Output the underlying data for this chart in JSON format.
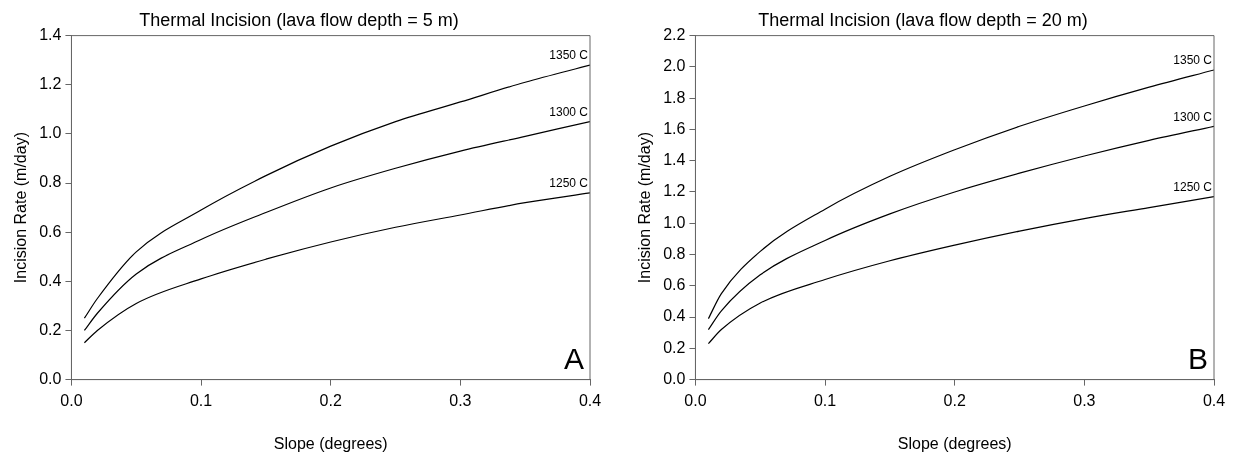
{
  "chart_data": [
    {
      "type": "line",
      "title": "Thermal Incision (lava flow depth = 5 m)",
      "xlabel": "Slope (degrees)",
      "ylabel": "Incision Rate (m/day)",
      "x": [
        0.01,
        0.02,
        0.05,
        0.1,
        0.15,
        0.2,
        0.25,
        0.3,
        0.35,
        0.4
      ],
      "series": [
        {
          "name": "1350 C",
          "color": "#000000",
          "values": [
            0.25,
            0.33,
            0.52,
            0.69,
            0.83,
            0.95,
            1.05,
            1.13,
            1.21,
            1.28
          ]
        },
        {
          "name": "1300 C",
          "color": "#000000",
          "values": [
            0.2,
            0.27,
            0.43,
            0.57,
            0.68,
            0.78,
            0.86,
            0.93,
            0.99,
            1.05
          ]
        },
        {
          "name": "1250 C",
          "color": "#000000",
          "values": [
            0.15,
            0.2,
            0.31,
            0.41,
            0.49,
            0.56,
            0.62,
            0.67,
            0.72,
            0.76
          ]
        }
      ],
      "xlim": [
        0,
        0.4
      ],
      "xticks": [
        {
          "value": 0,
          "label": "0.0"
        },
        0.1,
        0.2,
        0.3,
        0.4
      ],
      "ylim": [
        0,
        1.4
      ],
      "yticks": [
        {
          "value": 0,
          "label": "0.0"
        },
        0.2,
        0.4,
        0.6,
        0.8,
        {
          "value": 1,
          "label": "1.0"
        },
        1.2,
        1.4
      ],
      "annotations": [
        "A"
      ],
      "grid": false,
      "legend": false,
      "marker": "none",
      "line_style": "solid"
    },
    {
      "type": "line",
      "title": "Thermal Incision (lava flow depth = 20 m)",
      "xlabel": "Slope (degrees)",
      "ylabel": "Incision Rate (m/day)",
      "x": [
        0.01,
        0.02,
        0.05,
        0.1,
        0.15,
        0.2,
        0.25,
        0.3,
        0.35,
        0.4
      ],
      "series": [
        {
          "name": "1350 C",
          "color": "#000000",
          "values": [
            0.39,
            0.55,
            0.82,
            1.09,
            1.3,
            1.47,
            1.62,
            1.75,
            1.87,
            1.98
          ]
        },
        {
          "name": "1300 C",
          "color": "#000000",
          "values": [
            0.32,
            0.44,
            0.67,
            0.89,
            1.06,
            1.2,
            1.32,
            1.43,
            1.53,
            1.62
          ]
        },
        {
          "name": "1250 C",
          "color": "#000000",
          "values": [
            0.23,
            0.32,
            0.49,
            0.64,
            0.76,
            0.86,
            0.95,
            1.03,
            1.1,
            1.17
          ]
        }
      ],
      "xlim": [
        0,
        0.4
      ],
      "xticks": [
        {
          "value": 0,
          "label": "0.0"
        },
        0.1,
        0.2,
        0.3,
        0.4
      ],
      "ylim": [
        0,
        2.2
      ],
      "yticks": [
        {
          "value": 0,
          "label": "0.0"
        },
        0.2,
        0.4,
        0.6,
        0.8,
        {
          "value": 1,
          "label": "1.0"
        },
        1.2,
        1.4,
        1.6,
        1.8,
        {
          "value": 2,
          "label": "2.0"
        },
        2.2
      ],
      "annotations": [
        "B"
      ],
      "grid": false,
      "legend": false,
      "marker": "none",
      "line_style": "solid"
    }
  ]
}
